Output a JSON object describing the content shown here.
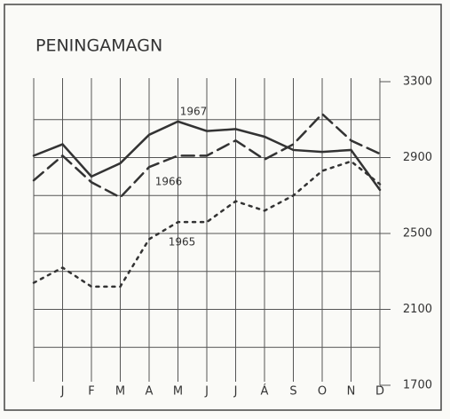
{
  "chart_data": {
    "type": "line",
    "title": "PENINGAMAGN",
    "categories": [
      null,
      "J",
      "F",
      "M",
      "A",
      "M",
      "J",
      "J",
      "Á",
      "S",
      "O",
      "N",
      "D"
    ],
    "series": [
      {
        "name": "1967",
        "color": "#333333",
        "style": "solid",
        "values": [
          2910,
          2970,
          2800,
          2870,
          3020,
          3090,
          3040,
          3050,
          3010,
          2940,
          2930,
          2940,
          2730
        ]
      },
      {
        "name": "1966",
        "color": "#333333",
        "style": "dashed",
        "values": [
          2780,
          2910,
          2770,
          2690,
          2850,
          2910,
          2910,
          2990,
          2890,
          2970,
          3130,
          2990,
          2920
        ]
      },
      {
        "name": "1965",
        "color": "#333333",
        "style": "dotted",
        "values": [
          2240,
          2320,
          2220,
          2220,
          2470,
          2560,
          2560,
          2670,
          2620,
          2700,
          2830,
          2880,
          2760
        ]
      }
    ],
    "ylim": [
      1700,
      3300
    ],
    "yticks": [
      1700,
      2100,
      2500,
      2900,
      3300
    ],
    "minor_yticks": [
      1900,
      2300,
      2700,
      3100
    ],
    "grid": true
  }
}
